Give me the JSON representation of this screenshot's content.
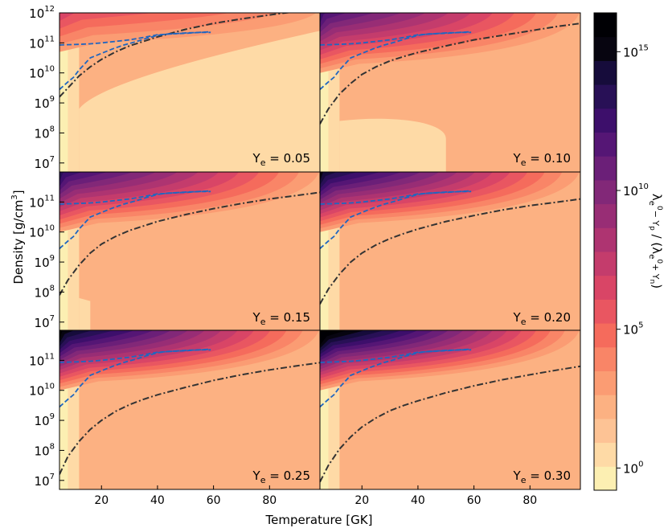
{
  "chart_data": {
    "type": "heatmap",
    "xlabel": "Temperature [GK]",
    "ylabel": "Density [g/cm³]",
    "ylabel_main": "Density [g/cm",
    "ylabel_exp": "3",
    "ylabel_end": "]",
    "xlim": [
      5,
      98
    ],
    "ylim_log10": [
      6.7,
      12
    ],
    "x_ticks": [
      20,
      40,
      60,
      80
    ],
    "x_ticks_major": [
      "20",
      "40",
      "60",
      "80"
    ],
    "y_ticks_top": [
      {
        "base": "10",
        "exp": "12",
        "v": 12
      },
      {
        "base": "10",
        "exp": "11",
        "v": 11
      },
      {
        "base": "10",
        "exp": "10",
        "v": 10
      },
      {
        "base": "10",
        "exp": "9",
        "v": 9
      },
      {
        "base": "10",
        "exp": "8",
        "v": 8
      },
      {
        "base": "10",
        "exp": "7",
        "v": 7
      }
    ],
    "y_ticks_lower": [
      {
        "base": "10",
        "exp": "11",
        "v": 11
      },
      {
        "base": "10",
        "exp": "10",
        "v": 10
      },
      {
        "base": "10",
        "exp": "9",
        "v": 9
      },
      {
        "base": "10",
        "exp": "8",
        "v": 8
      },
      {
        "base": "10",
        "exp": "7",
        "v": 7
      }
    ],
    "colorbar": {
      "label": "λe⁻Yp / (λe⁺Yn)",
      "label_parts": {
        "lam1": "λ",
        "s1": "e",
        "t1": "0",
        "s1b": "− Y",
        "p": "p",
        "sep": " / (",
        "lam2": "λ",
        "s2": "e",
        "t2": "0",
        "s2b": "+ Y",
        "n": "n",
        "close": ")"
      },
      "scale": "log",
      "range_log10": [
        -0.8,
        16.4
      ],
      "ticks": [
        {
          "base": "10",
          "exp": "15",
          "v": 15
        },
        {
          "base": "10",
          "exp": "10",
          "v": 10
        },
        {
          "base": "10",
          "exp": "5",
          "v": 5
        },
        {
          "base": "10",
          "exp": "0",
          "v": 0
        }
      ],
      "colors": [
        "#fcefb2",
        "#fedaa6",
        "#fdc395",
        "#fcb182",
        "#fb9c73",
        "#f98567",
        "#f56b5c",
        "#e95661",
        "#d94566",
        "#c43c6c",
        "#ae3471",
        "#982d75",
        "#822878",
        "#6b1f78",
        "#551675",
        "#3d0f6b",
        "#281056",
        "#160c3b",
        "#070510",
        "#000004"
      ]
    },
    "panels": [
      {
        "label_base": "Y",
        "label_sub": "e",
        "label_eq": " = 0.05",
        "ye": 0.05,
        "dashdot_curve": [
          [
            5,
            9.2
          ],
          [
            8,
            9.5
          ],
          [
            12,
            9.9
          ],
          [
            16,
            10.2
          ],
          [
            20,
            10.45
          ],
          [
            25,
            10.7
          ],
          [
            30,
            10.9
          ],
          [
            35,
            11.05
          ],
          [
            40,
            11.2
          ],
          [
            50,
            11.45
          ],
          [
            60,
            11.65
          ],
          [
            70,
            11.8
          ],
          [
            80,
            11.93
          ],
          [
            90,
            12.05
          ]
        ]
      },
      {
        "label_base": "Y",
        "label_sub": "e",
        "label_eq": " = 0.10",
        "ye": 0.1,
        "dashdot_curve": [
          [
            5,
            8.3
          ],
          [
            8,
            8.8
          ],
          [
            12,
            9.3
          ],
          [
            16,
            9.65
          ],
          [
            20,
            9.95
          ],
          [
            25,
            10.2
          ],
          [
            30,
            10.4
          ],
          [
            35,
            10.55
          ],
          [
            40,
            10.68
          ],
          [
            50,
            10.9
          ],
          [
            60,
            11.1
          ],
          [
            70,
            11.25
          ],
          [
            80,
            11.4
          ],
          [
            90,
            11.55
          ],
          [
            98,
            11.65
          ]
        ]
      },
      {
        "label_base": "Y",
        "label_sub": "e",
        "label_eq": " = 0.15",
        "ye": 0.15,
        "dashdot_curve": [
          [
            5,
            7.9
          ],
          [
            8,
            8.4
          ],
          [
            12,
            8.9
          ],
          [
            16,
            9.3
          ],
          [
            20,
            9.6
          ],
          [
            25,
            9.85
          ],
          [
            30,
            10.05
          ],
          [
            35,
            10.2
          ],
          [
            40,
            10.35
          ],
          [
            50,
            10.58
          ],
          [
            60,
            10.78
          ],
          [
            70,
            10.95
          ],
          [
            80,
            11.1
          ],
          [
            90,
            11.22
          ],
          [
            98,
            11.32
          ]
        ]
      },
      {
        "label_base": "Y",
        "label_sub": "e",
        "label_eq": " = 0.20",
        "ye": 0.2,
        "dashdot_curve": [
          [
            5,
            7.6
          ],
          [
            8,
            8.1
          ],
          [
            12,
            8.6
          ],
          [
            16,
            9.0
          ],
          [
            20,
            9.3
          ],
          [
            25,
            9.57
          ],
          [
            30,
            9.78
          ],
          [
            35,
            9.95
          ],
          [
            40,
            10.1
          ],
          [
            50,
            10.35
          ],
          [
            60,
            10.55
          ],
          [
            70,
            10.73
          ],
          [
            80,
            10.88
          ],
          [
            90,
            11.0
          ],
          [
            98,
            11.1
          ]
        ]
      },
      {
        "label_base": "Y",
        "label_sub": "e",
        "label_eq": " = 0.25",
        "ye": 0.25,
        "dashdot_curve": [
          [
            5,
            7.2
          ],
          [
            8,
            7.8
          ],
          [
            12,
            8.3
          ],
          [
            16,
            8.7
          ],
          [
            20,
            9.0
          ],
          [
            25,
            9.3
          ],
          [
            30,
            9.52
          ],
          [
            35,
            9.7
          ],
          [
            40,
            9.85
          ],
          [
            50,
            10.1
          ],
          [
            60,
            10.33
          ],
          [
            70,
            10.52
          ],
          [
            80,
            10.68
          ],
          [
            90,
            10.82
          ],
          [
            98,
            10.92
          ]
        ]
      },
      {
        "label_base": "Y",
        "label_sub": "e",
        "label_eq": " = 0.30",
        "ye": 0.3,
        "dashdot_curve": [
          [
            5,
            6.95
          ],
          [
            8,
            7.5
          ],
          [
            12,
            8.05
          ],
          [
            16,
            8.45
          ],
          [
            20,
            8.78
          ],
          [
            25,
            9.08
          ],
          [
            30,
            9.32
          ],
          [
            35,
            9.5
          ],
          [
            40,
            9.65
          ],
          [
            50,
            9.92
          ],
          [
            60,
            10.15
          ],
          [
            70,
            10.35
          ],
          [
            80,
            10.52
          ],
          [
            90,
            10.68
          ],
          [
            98,
            10.8
          ]
        ]
      }
    ],
    "dashed_curve_a": [
      [
        5,
        9.45
      ],
      [
        8,
        9.7
      ],
      [
        10,
        9.85
      ],
      [
        12,
        10.1
      ],
      [
        14,
        10.3
      ],
      [
        16,
        10.5
      ],
      [
        20,
        10.65
      ],
      [
        24,
        10.8
      ],
      [
        28,
        10.93
      ],
      [
        32,
        11.03
      ],
      [
        36,
        11.15
      ],
      [
        40,
        11.25
      ],
      [
        44,
        11.3
      ],
      [
        50,
        11.32
      ],
      [
        55,
        11.35
      ],
      [
        59,
        11.35
      ]
    ],
    "dashed_curve_b": [
      [
        5,
        10.93
      ],
      [
        8,
        10.94
      ],
      [
        12,
        10.95
      ],
      [
        16,
        10.97
      ],
      [
        20,
        11.0
      ],
      [
        25,
        11.05
      ],
      [
        30,
        11.1
      ],
      [
        35,
        11.18
      ],
      [
        40,
        11.27
      ],
      [
        45,
        11.3
      ],
      [
        50,
        11.33
      ],
      [
        55,
        11.35
      ],
      [
        59,
        11.37
      ]
    ]
  }
}
